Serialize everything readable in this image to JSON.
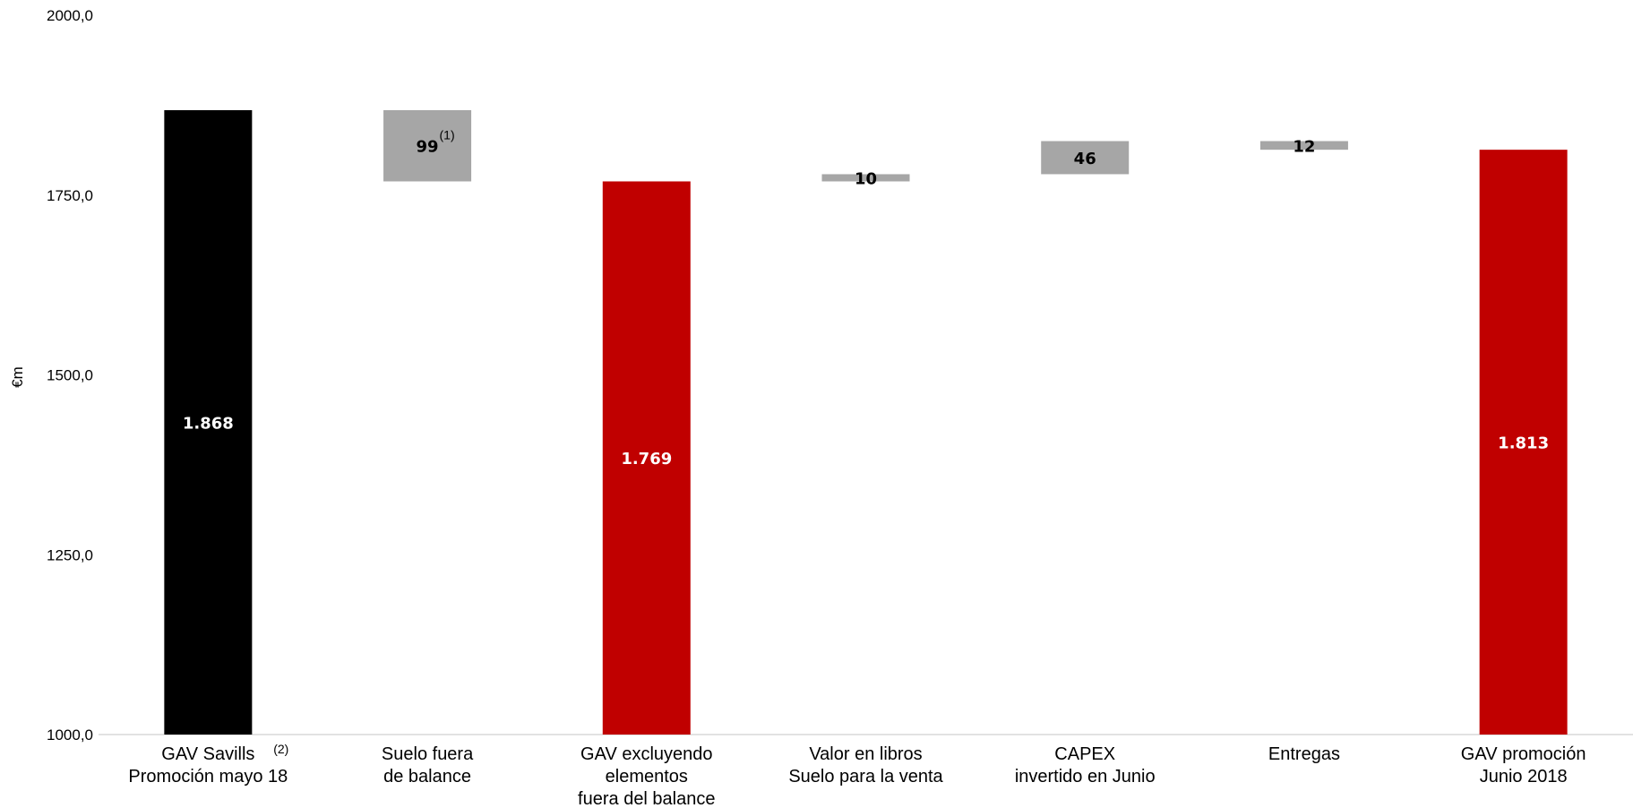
{
  "chart_data": {
    "type": "waterfall",
    "ylabel": "€m",
    "ylim": [
      1000,
      2000
    ],
    "yticks": [
      {
        "value": 1000,
        "label": "1000,0"
      },
      {
        "value": 1250,
        "label": "1250,0"
      },
      {
        "value": 1500,
        "label": "1500,0"
      },
      {
        "value": 1750,
        "label": "1750,0"
      },
      {
        "value": 2000,
        "label": "2000,0"
      }
    ],
    "grid": false,
    "bars": [
      {
        "category": [
          "GAV Savills",
          "Promoción mayo 18"
        ],
        "note": "(2)",
        "kind": "total",
        "start": 1000,
        "end": 1868,
        "label": "1.868",
        "color": "#000000",
        "label_color": "#ffffff"
      },
      {
        "category": [
          "Suelo fuera",
          "de balance"
        ],
        "kind": "decrease",
        "start": 1769,
        "end": 1868,
        "label": "99",
        "label_note": "(1)",
        "color": "#a6a6a6",
        "label_color": "#000000"
      },
      {
        "category": [
          "GAV excluyendo",
          "elementos",
          "fuera del balance"
        ],
        "kind": "total",
        "start": 1000,
        "end": 1769,
        "label": "1.769",
        "color": "#c00000",
        "label_color": "#ffffff"
      },
      {
        "category": [
          "Valor en libros",
          "Suelo para la venta"
        ],
        "kind": "increase",
        "start": 1769,
        "end": 1779,
        "label": "10",
        "color": "#a6a6a6",
        "label_color": "#000000"
      },
      {
        "category": [
          "CAPEX",
          "invertido en Junio"
        ],
        "kind": "increase",
        "start": 1779,
        "end": 1825,
        "label": "46",
        "color": "#a6a6a6",
        "label_color": "#000000"
      },
      {
        "category": [
          "Entregas"
        ],
        "kind": "decrease",
        "start": 1813,
        "end": 1825,
        "label": "12",
        "color": "#a6a6a6",
        "label_color": "#000000"
      },
      {
        "category": [
          "GAV promoción",
          "Junio 2018"
        ],
        "kind": "total",
        "start": 1000,
        "end": 1813,
        "label": "1.813",
        "color": "#c00000",
        "label_color": "#ffffff"
      }
    ]
  }
}
